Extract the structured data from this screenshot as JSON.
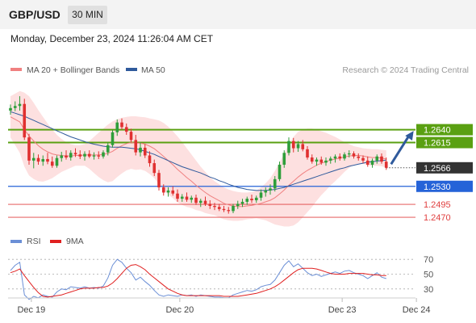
{
  "header": {
    "symbol": "GBP/USD",
    "timeframe": "30 MIN",
    "datetime": "Monday, December 23, 2024 11:26:04 AM CET"
  },
  "colors": {
    "bull": "#2e9e3a",
    "bear": "#e03030",
    "ma20": "#f08080",
    "ma50": "#2f5a9c",
    "band_fill": "#fde0e0",
    "resistance": "#5aa012",
    "support": "#2563d8",
    "red_level": "#e04040",
    "rsi": "#6b8fd6",
    "rsi_ma": "#e02020",
    "price_tag": "#333333"
  },
  "chart_data": [
    {
      "type": "candlestick",
      "title": "",
      "legend": [
        {
          "name": "MA 20 + Bollinger Bands",
          "color": "#f08080"
        },
        {
          "name": "MA 50",
          "color": "#2f5a9c"
        }
      ],
      "legend_placement": "top-left",
      "copyright": "Research © 2024 Trading Central",
      "x_tick_labels": [
        "Dec 19",
        "Dec 20",
        "Dec 23",
        "Dec 24"
      ],
      "x_tick_positions": [
        4.5,
        36.5,
        71.5,
        87.5
      ],
      "ylim": [
        1.2445,
        1.2735
      ],
      "levels": [
        {
          "value": 1.264,
          "label": "1.2640",
          "kind": "resistance"
        },
        {
          "value": 1.2615,
          "label": "1.2615",
          "kind": "resistance"
        },
        {
          "value": 1.253,
          "label": "1.2530",
          "kind": "support"
        },
        {
          "value": 1.2495,
          "label": "1.2495",
          "kind": "red"
        },
        {
          "value": 1.247,
          "label": "1.2470",
          "kind": "red"
        }
      ],
      "last_price": {
        "value": 1.2566,
        "label": "1.2566"
      },
      "ohlc": [
        [
          1.2677,
          1.2689,
          1.2669,
          1.2682
        ],
        [
          1.2682,
          1.2695,
          1.2676,
          1.2686
        ],
        [
          1.2686,
          1.2705,
          1.2677,
          1.269
        ],
        [
          1.269,
          1.27,
          1.262,
          1.2625
        ],
        [
          1.2625,
          1.2632,
          1.2572,
          1.258
        ],
        [
          1.258,
          1.2595,
          1.2565,
          1.2585
        ],
        [
          1.2585,
          1.2592,
          1.2572,
          1.2578
        ],
        [
          1.2578,
          1.259,
          1.257,
          1.2583
        ],
        [
          1.2583,
          1.2595,
          1.2573,
          1.2578
        ],
        [
          1.2578,
          1.2588,
          1.2566,
          1.257
        ],
        [
          1.257,
          1.259,
          1.2566,
          1.2585
        ],
        [
          1.2585,
          1.2597,
          1.2578,
          1.259
        ],
        [
          1.259,
          1.26,
          1.2582,
          1.2586
        ],
        [
          1.2586,
          1.26,
          1.258,
          1.2595
        ],
        [
          1.2595,
          1.2604,
          1.2587,
          1.2592
        ],
        [
          1.2592,
          1.26,
          1.2583,
          1.2588
        ],
        [
          1.2588,
          1.2598,
          1.258,
          1.2593
        ],
        [
          1.2593,
          1.26,
          1.2585,
          1.2588
        ],
        [
          1.2588,
          1.2596,
          1.2582,
          1.259
        ],
        [
          1.259,
          1.2598,
          1.2583,
          1.2588
        ],
        [
          1.2588,
          1.26,
          1.2584,
          1.2596
        ],
        [
          1.2596,
          1.2615,
          1.259,
          1.261
        ],
        [
          1.261,
          1.264,
          1.2605,
          1.2635
        ],
        [
          1.2635,
          1.266,
          1.2628,
          1.2654
        ],
        [
          1.2654,
          1.2662,
          1.264,
          1.2645
        ],
        [
          1.2645,
          1.2652,
          1.263,
          1.2636
        ],
        [
          1.2636,
          1.2642,
          1.2615,
          1.262
        ],
        [
          1.262,
          1.263,
          1.259,
          1.2596
        ],
        [
          1.2596,
          1.2615,
          1.2588,
          1.2605
        ],
        [
          1.2605,
          1.2612,
          1.2585,
          1.259
        ],
        [
          1.259,
          1.2598,
          1.2568,
          1.2575
        ],
        [
          1.2575,
          1.2582,
          1.255,
          1.2556
        ],
        [
          1.2556,
          1.2562,
          1.2522,
          1.2528
        ],
        [
          1.2528,
          1.2534,
          1.2512,
          1.2518
        ],
        [
          1.2518,
          1.2528,
          1.251,
          1.2522
        ],
        [
          1.2522,
          1.253,
          1.2512,
          1.2516
        ],
        [
          1.2516,
          1.2524,
          1.25,
          1.2506
        ],
        [
          1.2506,
          1.2515,
          1.25,
          1.251
        ],
        [
          1.251,
          1.2518,
          1.25,
          1.2504
        ],
        [
          1.2504,
          1.2512,
          1.2498,
          1.2508
        ],
        [
          1.2508,
          1.2514,
          1.2494,
          1.2498
        ],
        [
          1.2498,
          1.2506,
          1.249,
          1.2502
        ],
        [
          1.2502,
          1.251,
          1.2492,
          1.2496
        ],
        [
          1.2496,
          1.2503,
          1.2486,
          1.2492
        ],
        [
          1.2492,
          1.2498,
          1.2484,
          1.249
        ],
        [
          1.249,
          1.2496,
          1.2482,
          1.2486
        ],
        [
          1.2486,
          1.2492,
          1.248,
          1.2484
        ],
        [
          1.2484,
          1.249,
          1.2477,
          1.2482
        ],
        [
          1.2482,
          1.2496,
          1.2478,
          1.2492
        ],
        [
          1.2492,
          1.2502,
          1.2486,
          1.2496
        ],
        [
          1.2496,
          1.2506,
          1.249,
          1.25
        ],
        [
          1.25,
          1.251,
          1.2494,
          1.2506
        ],
        [
          1.2506,
          1.2514,
          1.2498,
          1.2503
        ],
        [
          1.2503,
          1.2512,
          1.2498,
          1.2508
        ],
        [
          1.2508,
          1.2524,
          1.2502,
          1.2518
        ],
        [
          1.2518,
          1.2528,
          1.251,
          1.2522
        ],
        [
          1.2522,
          1.2534,
          1.2514,
          1.2526
        ],
        [
          1.2526,
          1.255,
          1.252,
          1.2544
        ],
        [
          1.2544,
          1.2578,
          1.254,
          1.2572
        ],
        [
          1.2572,
          1.26,
          1.2566,
          1.2595
        ],
        [
          1.2595,
          1.2625,
          1.259,
          1.2618
        ],
        [
          1.2618,
          1.2624,
          1.2596,
          1.2604
        ],
        [
          1.2604,
          1.2618,
          1.2597,
          1.2612
        ],
        [
          1.2612,
          1.262,
          1.2598,
          1.2602
        ],
        [
          1.2602,
          1.2608,
          1.2582,
          1.2586
        ],
        [
          1.2586,
          1.2592,
          1.2574,
          1.2578
        ],
        [
          1.2578,
          1.2586,
          1.257,
          1.2582
        ],
        [
          1.2582,
          1.2588,
          1.2572,
          1.2576
        ],
        [
          1.2576,
          1.2586,
          1.257,
          1.258
        ],
        [
          1.258,
          1.2588,
          1.2574,
          1.2584
        ],
        [
          1.2584,
          1.2592,
          1.2576,
          1.2588
        ],
        [
          1.2588,
          1.2594,
          1.258,
          1.2584
        ],
        [
          1.2584,
          1.2596,
          1.258,
          1.2592
        ],
        [
          1.2592,
          1.26,
          1.2586,
          1.2594
        ],
        [
          1.2594,
          1.2598,
          1.2584,
          1.2588
        ],
        [
          1.2588,
          1.2594,
          1.258,
          1.2585
        ],
        [
          1.2585,
          1.259,
          1.2575,
          1.258
        ],
        [
          1.258,
          1.2588,
          1.2568,
          1.2572
        ],
        [
          1.2572,
          1.2584,
          1.2566,
          1.258
        ],
        [
          1.258,
          1.2592,
          1.2574,
          1.2588
        ],
        [
          1.2588,
          1.2594,
          1.2574,
          1.2578
        ],
        [
          1.2578,
          1.2586,
          1.2562,
          1.2566
        ]
      ],
      "ma20": [
        1.2665,
        1.266,
        1.2655,
        1.264,
        1.2628,
        1.2618,
        1.2609,
        1.2602,
        1.2597,
        1.2593,
        1.2591,
        1.259,
        1.2589,
        1.2589,
        1.259,
        1.259,
        1.2591,
        1.2591,
        1.2591,
        1.2591,
        1.2592,
        1.2594,
        1.2598,
        1.2604,
        1.2609,
        1.2613,
        1.2615,
        1.2614,
        1.2614,
        1.2612,
        1.2608,
        1.2603,
        1.2596,
        1.2588,
        1.258,
        1.2572,
        1.2563,
        1.2555,
        1.2547,
        1.254,
        1.2532,
        1.2525,
        1.2518,
        1.2512,
        1.2507,
        1.2502,
        1.2497,
        1.2494,
        1.2492,
        1.2491,
        1.2491,
        1.2492,
        1.2493,
        1.2495,
        1.2497,
        1.25,
        1.2503,
        1.2508,
        1.2515,
        1.2523,
        1.2532,
        1.254,
        1.2548,
        1.2555,
        1.2561,
        1.2566,
        1.2571,
        1.2575,
        1.2578,
        1.2581,
        1.2583,
        1.2585,
        1.2587,
        1.2589,
        1.259,
        1.259,
        1.2589,
        1.2587,
        1.2586,
        1.2586,
        1.2585,
        1.2583
      ],
      "bb_upper": [
        1.2705,
        1.271,
        1.2715,
        1.2712,
        1.2705,
        1.2692,
        1.2678,
        1.2665,
        1.2652,
        1.264,
        1.263,
        1.2622,
        1.2616,
        1.2612,
        1.261,
        1.261,
        1.2612,
        1.2618,
        1.2626,
        1.2634,
        1.2642,
        1.265,
        1.2656,
        1.266,
        1.2663,
        1.2665,
        1.2666,
        1.2666,
        1.2665,
        1.2664,
        1.2662,
        1.266,
        1.2658,
        1.2653,
        1.2646,
        1.2637,
        1.2627,
        1.2616,
        1.2604,
        1.2592,
        1.258,
        1.2568,
        1.2558,
        1.2548,
        1.254,
        1.2534,
        1.2528,
        1.2524,
        1.2521,
        1.2519,
        1.2518,
        1.2518,
        1.2519,
        1.2522,
        1.2528,
        1.2536,
        1.2546,
        1.256,
        1.2576,
        1.2594,
        1.2612,
        1.2626,
        1.2636,
        1.264,
        1.2642,
        1.2642,
        1.264,
        1.2637,
        1.2634,
        1.263,
        1.2626,
        1.2621,
        1.2616,
        1.2612,
        1.2608,
        1.2606,
        1.2604,
        1.2603,
        1.2602,
        1.2602,
        1.2601,
        1.26
      ],
      "bb_lower": [
        1.2625,
        1.261,
        1.2595,
        1.2568,
        1.2551,
        1.2544,
        1.254,
        1.2539,
        1.2542,
        1.2546,
        1.2552,
        1.2558,
        1.2562,
        1.2566,
        1.257,
        1.257,
        1.257,
        1.2564,
        1.2556,
        1.2548,
        1.2542,
        1.2538,
        1.254,
        1.2548,
        1.2555,
        1.2561,
        1.2564,
        1.2562,
        1.2563,
        1.256,
        1.2554,
        1.2546,
        1.2534,
        1.2523,
        1.2514,
        1.2507,
        1.2499,
        1.2494,
        1.249,
        1.2488,
        1.2484,
        1.2482,
        1.2478,
        1.2476,
        1.2474,
        1.247,
        1.2466,
        1.2464,
        1.2463,
        1.2463,
        1.2464,
        1.2466,
        1.2467,
        1.2468,
        1.2466,
        1.2464,
        1.246,
        1.2456,
        1.2454,
        1.2452,
        1.2452,
        1.2454,
        1.246,
        1.247,
        1.248,
        1.249,
        1.2502,
        1.2513,
        1.2522,
        1.2532,
        1.254,
        1.2549,
        1.2558,
        1.2566,
        1.2572,
        1.2574,
        1.2574,
        1.2571,
        1.257,
        1.257,
        1.2569,
        1.2566
      ],
      "ma50": [
        1.2675,
        1.2672,
        1.2669,
        1.2666,
        1.2662,
        1.2658,
        1.2654,
        1.265,
        1.2646,
        1.2642,
        1.2638,
        1.2634,
        1.263,
        1.2626,
        1.2623,
        1.262,
        1.2617,
        1.2614,
        1.2612,
        1.261,
        1.2608,
        1.2607,
        1.2606,
        1.2606,
        1.2606,
        1.2605,
        1.2604,
        1.2603,
        1.2601,
        1.2598,
        1.2595,
        1.2592,
        1.2588,
        1.2584,
        1.258,
        1.2576,
        1.2572,
        1.2568,
        1.2565,
        1.2562,
        1.2559,
        1.2556,
        1.2552,
        1.2548,
        1.2545,
        1.2541,
        1.2538,
        1.2534,
        1.2531,
        1.2528,
        1.2526,
        1.2524,
        1.2523,
        1.2522,
        1.2522,
        1.2522,
        1.2523,
        1.2524,
        1.2526,
        1.2528,
        1.2531,
        1.2534,
        1.2537,
        1.254,
        1.2543,
        1.2546,
        1.2549,
        1.2552,
        1.2555,
        1.2558,
        1.2561,
        1.2564,
        1.2566,
        1.2569,
        1.2571,
        1.2573,
        1.2575,
        1.2577,
        1.2578,
        1.2579,
        1.258,
        1.2581
      ],
      "forecast": {
        "from": 1.2573,
        "to": 1.264
      }
    },
    {
      "type": "line",
      "title": "",
      "legend": [
        {
          "name": "RSI",
          "color": "#6b8fd6"
        },
        {
          "name": "9MA",
          "color": "#e02020"
        }
      ],
      "legend_placement": "top-left",
      "y_tick_labels": [
        "70",
        "50",
        "30"
      ],
      "y_ticks": [
        70,
        50,
        30
      ],
      "ylim": [
        20,
        80
      ],
      "rsi": [
        55,
        62,
        66,
        22,
        16,
        20,
        18,
        22,
        20,
        19,
        26,
        30,
        29,
        33,
        32,
        31,
        33,
        31,
        32,
        31,
        34,
        45,
        62,
        70,
        66,
        58,
        52,
        42,
        46,
        40,
        35,
        28,
        22,
        20,
        22,
        21,
        20,
        22,
        21,
        22,
        20,
        22,
        21,
        20,
        19,
        19,
        18,
        18,
        22,
        24,
        26,
        28,
        27,
        29,
        33,
        35,
        36,
        42,
        52,
        62,
        68,
        60,
        64,
        58,
        52,
        48,
        50,
        47,
        49,
        51,
        53,
        51,
        54,
        55,
        52,
        50,
        48,
        44,
        48,
        52,
        46,
        44
      ],
      "rsi_ma": [
        52,
        54,
        57,
        48,
        40,
        32,
        25,
        20,
        19,
        20,
        21,
        22,
        24,
        26,
        28,
        30,
        31,
        31,
        31,
        32,
        32,
        34,
        38,
        44,
        51,
        58,
        62,
        63,
        60,
        56,
        50,
        45,
        40,
        35,
        30,
        27,
        24,
        22,
        21,
        21,
        21,
        21,
        21,
        21,
        21,
        21,
        20,
        20,
        20,
        20,
        21,
        22,
        23,
        24,
        26,
        28,
        30,
        33,
        37,
        42,
        47,
        52,
        56,
        58,
        58,
        58,
        57,
        55,
        53,
        51,
        50,
        50,
        50,
        51,
        51,
        51,
        51,
        50,
        49,
        49,
        48,
        48
      ]
    }
  ]
}
